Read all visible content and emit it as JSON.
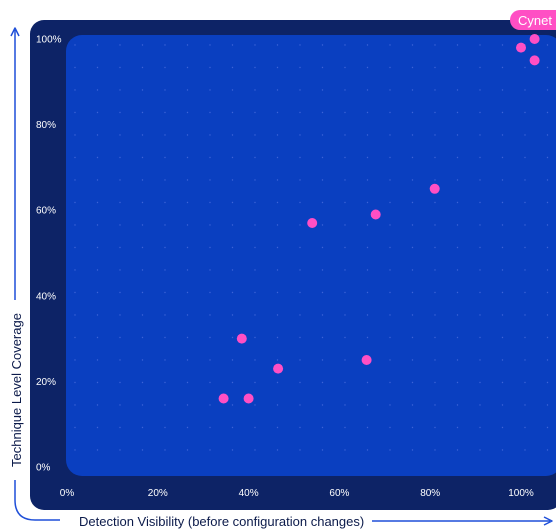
{
  "chart_data": {
    "type": "scatter",
    "xlabel": "Detection Visibility (before configuration changes)",
    "ylabel": "Technique Level Coverage",
    "xlim": [
      0,
      100
    ],
    "ylim": [
      0,
      100
    ],
    "x_ticks": [
      "0%",
      "20%",
      "40%",
      "60%",
      "80%",
      "100%"
    ],
    "y_ticks": [
      "0%",
      "20%",
      "40%",
      "60%",
      "80%",
      "100%"
    ],
    "grid": true,
    "colors": {
      "frame": "#0d2366",
      "plot_area": "#0a3fc0",
      "grid_dots": "#3d63d6",
      "point": "#ff4fc4",
      "axis_arrow": "#1f4fd8",
      "axis_title": "#0b1a4a"
    },
    "annotation": {
      "text": "Cynet",
      "target_point": 0
    },
    "points": [
      {
        "x": 103,
        "y": 100
      },
      {
        "x": 100,
        "y": 98
      },
      {
        "x": 103,
        "y": 95
      },
      {
        "x": 81,
        "y": 65
      },
      {
        "x": 68,
        "y": 59
      },
      {
        "x": 54,
        "y": 57
      },
      {
        "x": 38.5,
        "y": 30
      },
      {
        "x": 46.5,
        "y": 23
      },
      {
        "x": 66,
        "y": 25
      },
      {
        "x": 34.5,
        "y": 16
      },
      {
        "x": 40,
        "y": 16
      }
    ]
  }
}
